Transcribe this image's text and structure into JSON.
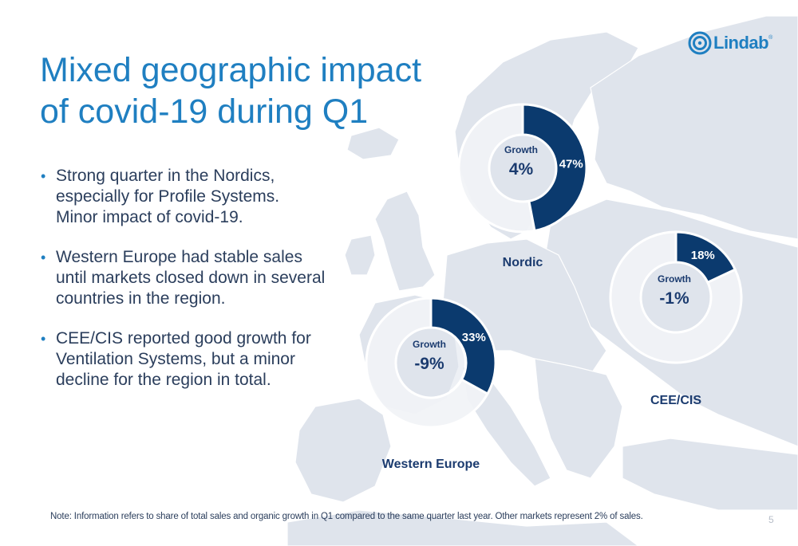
{
  "title_lines": [
    "Mixed geographic impact",
    "of covid-19 during Q1"
  ],
  "bullets": [
    {
      "lines": [
        "Strong quarter in the Nordics,",
        "especially for Profile Systems.",
        "Minor impact of covid-19."
      ]
    },
    {
      "lines": [
        "Western Europe had stable sales",
        "until markets closed down in several",
        "countries in the region."
      ]
    },
    {
      "lines": [
        "CEE/CIS reported good growth for",
        "Ventilation Systems, but a minor",
        "decline for the region in total."
      ]
    }
  ],
  "note": "Note: Information refers to share of total sales and organic growth in Q1 compared to the same quarter last year. Other markets represent 2% of sales.",
  "page_number": "5",
  "logo": {
    "text": "Lindab",
    "reg": "®"
  },
  "colors": {
    "accent": "#1f7fc1",
    "share": "#0b3a6e",
    "remainder": "#f1f3f6",
    "map": "#dfe4ec"
  },
  "chart_data": [
    {
      "type": "pie",
      "region": "Nordic",
      "share_pct": 47,
      "share_label": "47%",
      "growth_label": "Growth",
      "growth_value": "4%",
      "growth": 4
    },
    {
      "type": "pie",
      "region": "Western Europe",
      "share_pct": 33,
      "share_label": "33%",
      "growth_label": "Growth",
      "growth_value": "-9%",
      "growth": -9
    },
    {
      "type": "pie",
      "region": "CEE/CIS",
      "share_pct": 18,
      "share_label": "18%",
      "growth_label": "Growth",
      "growth_value": "-1%",
      "growth": -1
    }
  ]
}
